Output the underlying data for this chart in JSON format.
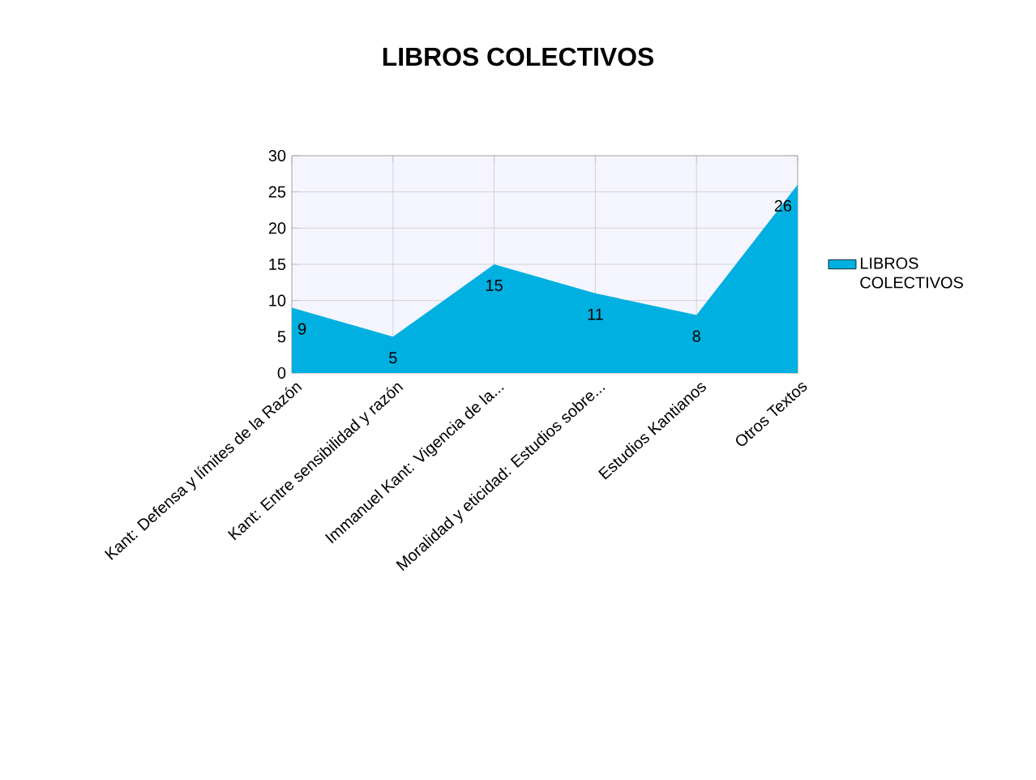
{
  "chart_data": {
    "type": "area",
    "title": "LIBROS COLECTIVOS",
    "categories": [
      "Kant: Defensa y límites de la Razón",
      "Kant: Entre sensibilidad y razón",
      "Immanuel Kant: Vigencia de la...",
      "Moralidad y eticidad: Estudios sobre...",
      "Estudios Kantianos",
      "Otros Textos"
    ],
    "series": [
      {
        "name": "LIBROS COLECTIVOS",
        "color": "#00b0e0",
        "values": [
          9,
          5,
          15,
          11,
          8,
          26
        ]
      }
    ],
    "ylim": [
      0,
      30
    ],
    "yticks": [
      0,
      5,
      10,
      15,
      20,
      25,
      30
    ],
    "grid": true,
    "legend": "right",
    "data_labels": true
  }
}
